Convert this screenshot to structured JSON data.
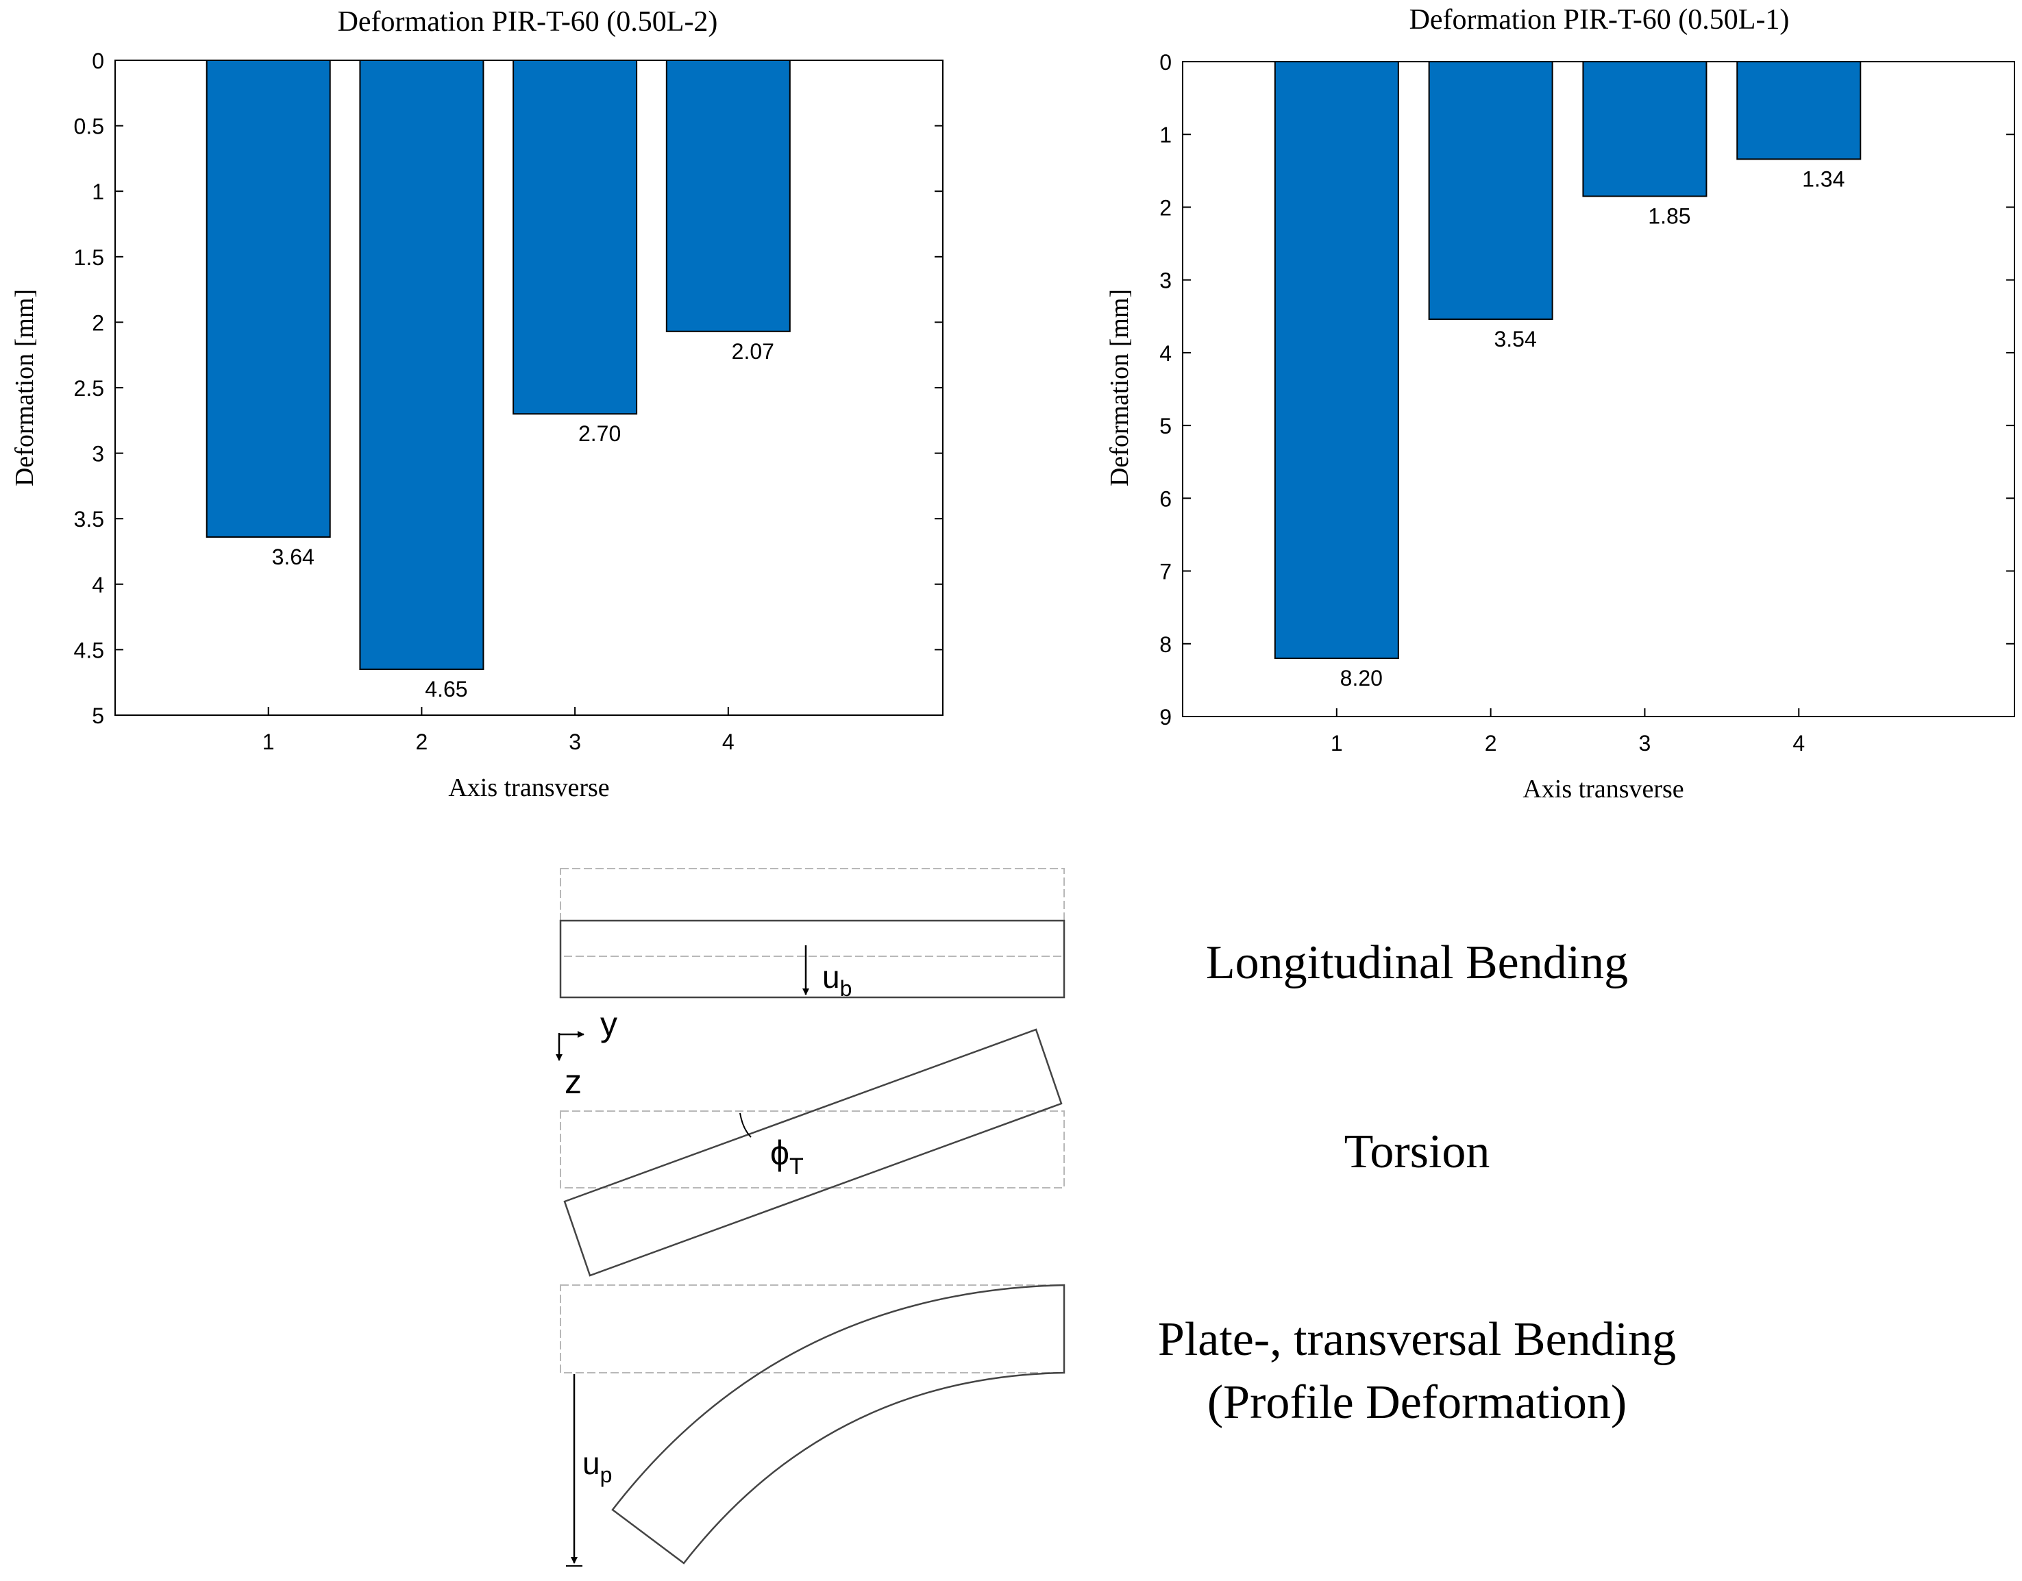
{
  "bar_color": "#0070C0",
  "chart_data": [
    {
      "type": "bar",
      "title": "Deformation PIR-T-60 (0.50L-2)",
      "xlabel": "Axis transverse",
      "ylabel": "Deformation [mm]",
      "categories": [
        "1",
        "2",
        "3",
        "4"
      ],
      "values": [
        3.64,
        4.65,
        2.7,
        2.07
      ],
      "value_labels": [
        "3.64",
        "4.65",
        "2.70",
        "2.07"
      ],
      "ylim": [
        0,
        5
      ],
      "y_reversed": true,
      "yticks": [
        0,
        0.5,
        1,
        1.5,
        2,
        2.5,
        3,
        3.5,
        4,
        4.5,
        5
      ],
      "ytick_labels": [
        "0",
        "0.5",
        "1",
        "1.5",
        "2",
        "2.5",
        "3",
        "3.5",
        "4",
        "4.5",
        "5"
      ],
      "xlim": [
        0,
        5.4
      ]
    },
    {
      "type": "bar",
      "title": "Deformation PIR-T-60 (0.50L-1)",
      "xlabel": "Axis transverse",
      "ylabel": "Deformation [mm]",
      "categories": [
        "1",
        "2",
        "3",
        "4"
      ],
      "values": [
        8.2,
        3.54,
        1.85,
        1.34
      ],
      "value_labels": [
        "8.20",
        "3.54",
        "1.85",
        "1.34"
      ],
      "ylim": [
        0,
        9
      ],
      "y_reversed": true,
      "yticks": [
        0,
        1,
        2,
        3,
        4,
        5,
        6,
        7,
        8,
        9
      ],
      "ytick_labels": [
        "0",
        "1",
        "2",
        "3",
        "4",
        "5",
        "6",
        "7",
        "8",
        "9"
      ],
      "xlim": [
        0,
        5.4
      ]
    }
  ],
  "diagram": {
    "longitudinal_label": "Longitudinal Bending",
    "torsion_label": "Torsion",
    "plate_label_line1": "Plate-, transversal Bending",
    "plate_label_line2": "(Profile Deformation)",
    "ub_main": "u",
    "ub_sub": "b",
    "phi_main": "ϕ",
    "phi_sub": "T",
    "up_main": "u",
    "up_sub": "p",
    "axis_y": "y",
    "axis_z": "z"
  }
}
